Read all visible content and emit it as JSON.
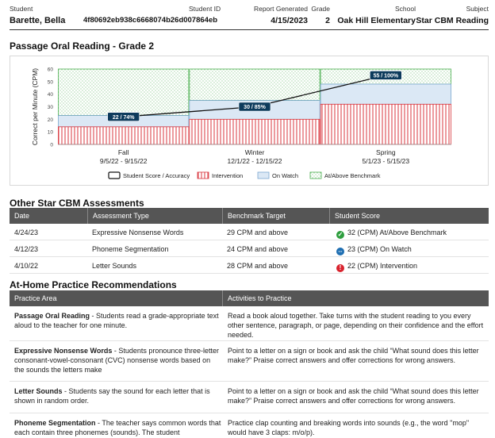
{
  "header": {
    "student_label": "Student",
    "student_name": "Barette, Bella",
    "student_id_label": "Student ID",
    "student_id": "4f80692eb938c6668074b26d007864eb",
    "report_generated_label": "Report Generated",
    "report_generated": "4/15/2023",
    "grade_label": "Grade",
    "grade": "2",
    "school_label": "School",
    "school": "Oak Hill Elementary",
    "subject_label": "Subject",
    "subject": "Star CBM Reading"
  },
  "chart_title": "Passage Oral Reading - Grade 2",
  "chart_data": {
    "type": "bar",
    "ylabel": "Correct per Minute (CPM)",
    "ylim": [
      0,
      60
    ],
    "yticks": [
      "0",
      "10",
      "20",
      "30",
      "40",
      "50",
      "60"
    ],
    "categories": [
      {
        "name": "Fall",
        "dates": "9/5/22 - 9/15/22"
      },
      {
        "name": "Winter",
        "dates": "12/1/22 - 12/15/22"
      },
      {
        "name": "Spring",
        "dates": "5/1/23 - 5/15/23"
      }
    ],
    "series": [
      {
        "name": "Intervention",
        "values": [
          14,
          20,
          32
        ]
      },
      {
        "name": "On Watch",
        "values": [
          23,
          35,
          48
        ]
      },
      {
        "name": "At/Above Benchmark",
        "values": [
          60,
          60,
          60
        ]
      }
    ],
    "student_scores": [
      {
        "value": 22,
        "label": "22 / 74%"
      },
      {
        "value": 30,
        "label": "30 / 85%"
      },
      {
        "value": 55,
        "label": "55 / 100%"
      }
    ],
    "legend": [
      {
        "key": "score",
        "label": "Student Score / Accuracy"
      },
      {
        "key": "intervention",
        "label": "Intervention"
      },
      {
        "key": "watch",
        "label": "On Watch"
      },
      {
        "key": "benchmark",
        "label": "At/Above Benchmark"
      }
    ],
    "colors": {
      "intervention": "#d9363e",
      "watch_fill": "#dbe8f5",
      "watch_stroke": "#7aa6cf",
      "benchmark": "#4caf50",
      "score_label_bg": "#0d3b5c"
    }
  },
  "assessments": {
    "title": "Other Star CBM Assessments",
    "columns": [
      "Date",
      "Assessment Type",
      "Benchmark Target",
      "Student Score"
    ],
    "rows": [
      {
        "date": "4/24/23",
        "type": "Expressive Nonsense Words",
        "target": "29 CPM and above",
        "score": "32 (CPM)",
        "status": "At/Above Benchmark",
        "icon": "check-circle-icon",
        "icon_glyph": "✓",
        "color": "#2e9e3e"
      },
      {
        "date": "4/12/23",
        "type": "Phoneme Segmentation",
        "target": "24 CPM and above",
        "score": "23 (CPM)",
        "status": "On Watch",
        "icon": "arrows-circle-icon",
        "icon_glyph": "⇔",
        "color": "#1f6fb2"
      },
      {
        "date": "4/10/22",
        "type": "Letter Sounds",
        "target": "28 CPM and above",
        "score": "22 (CPM)",
        "status": "Intervention",
        "icon": "exclamation-circle-icon",
        "icon_glyph": "!",
        "color": "#d9232e"
      }
    ]
  },
  "practice": {
    "title": "At-Home Practice Recommendations",
    "columns": [
      "Practice Area",
      "Activities to Practice"
    ],
    "rows": [
      {
        "area": "Passage Oral Reading",
        "area_desc": " - Students read a grade-appropriate text aloud to the teacher for one minute.",
        "activity": "Read a book aloud together. Take turns with the student reading to you every other sentence, paragraph, or page, depending on their confidence and the effort needed."
      },
      {
        "area": "Expressive Nonsense Words",
        "area_desc": " - Students pronounce three-letter consonant-vowel-consonant (CVC) nonsense words based on the sounds the letters make",
        "activity": "Point to a letter on a sign or book and ask the child “What sound does this letter make?” Praise correct answers and offer corrections for wrong answers."
      },
      {
        "area": "Letter Sounds",
        "area_desc": " - Students say the sound for each letter that is shown in random order.",
        "activity": "Point to a letter on a sign or book and ask the child “What sound does this letter make?” Praise correct answers and offer corrections for wrong answers."
      },
      {
        "area": "Phoneme Segmentation",
        "area_desc": " - The teacher says common words that each contain three phonemes (sounds). The student",
        "activity": "Practice clap counting and breaking words into sounds (e.g., the word \"mop\" would have 3 claps: m/o/p)."
      }
    ]
  }
}
